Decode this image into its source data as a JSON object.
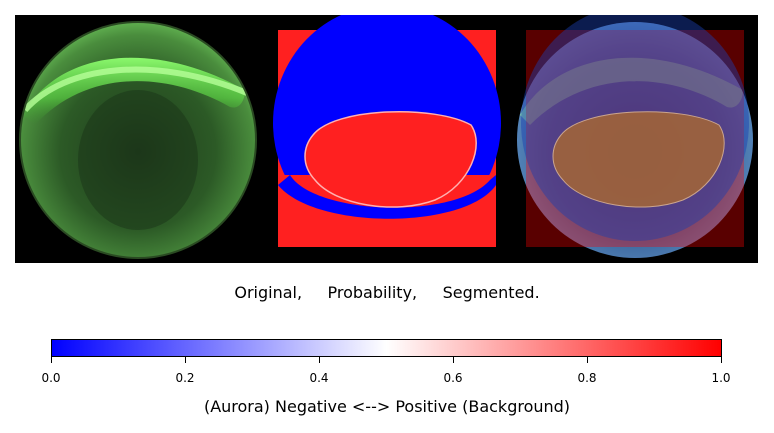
{
  "panels": [
    {
      "name": "original",
      "content": "all-sky aurora camera fisheye image"
    },
    {
      "name": "probability",
      "content": "probability map"
    },
    {
      "name": "segmented",
      "content": "segmented overlay"
    }
  ],
  "caption": "Original,     Probability,     Segmented.",
  "colorbar": {
    "ticks": [
      "0.0",
      "0.2",
      "0.4",
      "0.6",
      "0.8",
      "1.0"
    ],
    "label": "(Aurora) Negative <--> Positive (Background)",
    "low_color": "#0000ff",
    "mid_color": "#ffffff",
    "high_color": "#ff0000"
  }
}
